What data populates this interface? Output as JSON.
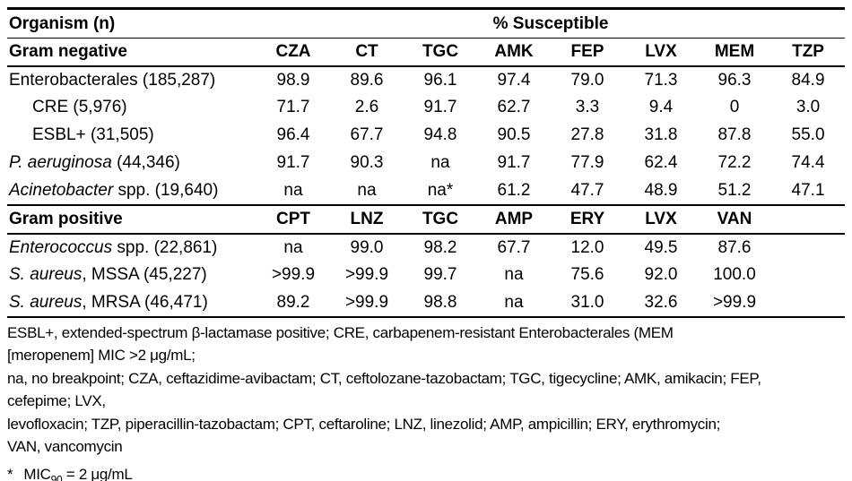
{
  "page": {
    "background": "#ffffff",
    "text_color": "#000000",
    "line_color": "#000000"
  },
  "header": {
    "organism_label": "Organism (n)",
    "susceptible_label": "% Susceptible"
  },
  "table": {
    "sections": [
      {
        "id": "gram-negative",
        "label": "Gram negative",
        "columns": [
          "CZA",
          "CT",
          "TGC",
          "AMK",
          "FEP",
          "LVX",
          "MEM",
          "TZP"
        ],
        "rows": [
          {
            "italic": "",
            "text": "Enterobacterales (185,287)",
            "indent": false,
            "values": [
              "98.9",
              "89.6",
              "96.1",
              "97.4",
              "79.0",
              "71.3",
              "96.3",
              "84.9"
            ]
          },
          {
            "italic": "",
            "text": "CRE (5,976)",
            "indent": true,
            "values": [
              "71.7",
              "2.6",
              "91.7",
              "62.7",
              "3.3",
              "9.4",
              "0",
              "3.0"
            ]
          },
          {
            "italic": "",
            "text": "ESBL+ (31,505)",
            "indent": true,
            "values": [
              "96.4",
              "67.7",
              "94.8",
              "90.5",
              "27.8",
              "31.8",
              "87.8",
              "55.0"
            ]
          },
          {
            "italic": "P. aeruginosa",
            "text": " (44,346)",
            "indent": false,
            "values": [
              "91.7",
              "90.3",
              "na",
              "91.7",
              "77.9",
              "62.4",
              "72.2",
              "74.4"
            ]
          },
          {
            "italic": "Acinetobacter",
            "text": " spp. (19,640)",
            "indent": false,
            "values": [
              "na",
              "na",
              "na*",
              "61.2",
              "47.7",
              "48.9",
              "51.2",
              "47.1"
            ]
          }
        ]
      },
      {
        "id": "gram-positive",
        "label": "Gram positive",
        "columns": [
          "CPT",
          "LNZ",
          "TGC",
          "AMP",
          "ERY",
          "LVX",
          "VAN",
          ""
        ],
        "rows": [
          {
            "italic": "Enterococcus",
            "text": " spp. (22,861)",
            "indent": false,
            "values": [
              "na",
              "99.0",
              "98.2",
              "67.7",
              "12.0",
              "49.5",
              "87.6",
              ""
            ]
          },
          {
            "italic": "S. aureus",
            "text": ", MSSA (45,227)",
            "indent": false,
            "values": [
              ">99.9",
              ">99.9",
              "99.7",
              "na",
              "75.6",
              "92.0",
              "100.0",
              ""
            ]
          },
          {
            "italic": "S. aureus",
            "text": ", MRSA (46,471)",
            "indent": false,
            "values": [
              "89.2",
              ">99.9",
              "98.8",
              "na",
              "31.0",
              "32.6",
              ">99.9",
              ""
            ]
          }
        ]
      }
    ]
  },
  "footnotes": {
    "lines": [
      "ESBL+, extended-spectrum β-lactamase positive; CRE, carbapenem-resistant Enterobacterales (MEM",
      "[meropenem] MIC >2 μg/mL;",
      "na, no breakpoint; CZA, ceftazidime-avibactam; CT, ceftolozane-tazobactam; TGC, tigecycline; AMK, amikacin; FEP,",
      "cefepime; LVX,",
      "levofloxacin; TZP, piperacillin-tazobactam; CPT, ceftaroline; LNZ, linezolid; AMP, ampicillin; ERY, erythromycin;",
      "VAN, vancomycin"
    ],
    "asterisk": {
      "marker": "*",
      "text": "MIC",
      "subscript": "90",
      "suffix": " = 2 μg/mL"
    }
  },
  "chart_data": [
    {
      "type": "table",
      "title": "% Susceptible",
      "section": "Gram negative",
      "columns": [
        "Organism (n)",
        "CZA",
        "CT",
        "TGC",
        "AMK",
        "FEP",
        "LVX",
        "MEM",
        "TZP"
      ],
      "rows": [
        [
          "Enterobacterales (185,287)",
          "98.9",
          "89.6",
          "96.1",
          "97.4",
          "79.0",
          "71.3",
          "96.3",
          "84.9"
        ],
        [
          "CRE (5,976)",
          "71.7",
          "2.6",
          "91.7",
          "62.7",
          "3.3",
          "9.4",
          "0",
          "3.0"
        ],
        [
          "ESBL+ (31,505)",
          "96.4",
          "67.7",
          "94.8",
          "90.5",
          "27.8",
          "31.8",
          "87.8",
          "55.0"
        ],
        [
          "P. aeruginosa (44,346)",
          "91.7",
          "90.3",
          "na",
          "91.7",
          "77.9",
          "62.4",
          "72.2",
          "74.4"
        ],
        [
          "Acinetobacter spp. (19,640)",
          "na",
          "na",
          "na*",
          "61.2",
          "47.7",
          "48.9",
          "51.2",
          "47.1"
        ]
      ]
    },
    {
      "type": "table",
      "title": "% Susceptible",
      "section": "Gram positive",
      "columns": [
        "Organism (n)",
        "CPT",
        "LNZ",
        "TGC",
        "AMP",
        "ERY",
        "LVX",
        "VAN"
      ],
      "rows": [
        [
          "Enterococcus spp. (22,861)",
          "na",
          "99.0",
          "98.2",
          "67.7",
          "12.0",
          "49.5",
          "87.6"
        ],
        [
          "S. aureus, MSSA (45,227)",
          ">99.9",
          ">99.9",
          "99.7",
          "na",
          "75.6",
          "92.0",
          "100.0"
        ],
        [
          "S. aureus, MRSA (46,471)",
          "89.2",
          ">99.9",
          "98.8",
          "na",
          "31.0",
          "32.6",
          ">99.9"
        ]
      ]
    }
  ]
}
